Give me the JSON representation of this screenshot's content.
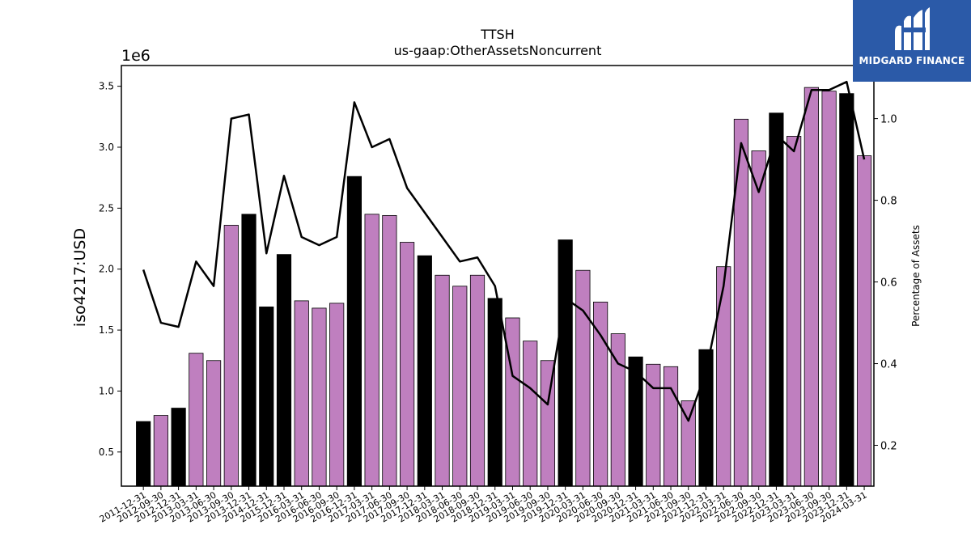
{
  "chart_data": {
    "type": "bar",
    "title": "TTSH",
    "subtitle": "us-gaap:OtherAssetsNoncurrent",
    "ylabel": "iso4217:USD",
    "y2label": "Percentage of Assets",
    "y_offset_label": "1e6",
    "y_scale": 1000000,
    "ylim": [
      220000,
      3670000
    ],
    "y2lim": [
      0.1,
      1.13
    ],
    "yticks": [
      "0.5",
      "1.0",
      "1.5",
      "2.0",
      "2.5",
      "3.0",
      "3.5"
    ],
    "y2ticks": [
      "0.2",
      "0.4",
      "0.6",
      "0.8",
      "1.0"
    ],
    "colors": {
      "annual": "#000000",
      "quarterly": "#bf7fbf",
      "line": "#000000"
    },
    "categories": [
      "2011-12-31",
      "2012-09-30",
      "2012-12-31",
      "2013-03-31",
      "2013-06-30",
      "2013-09-30",
      "2013-12-31",
      "2014-12-31",
      "2015-12-31",
      "2016-03-31",
      "2016-06-30",
      "2016-09-30",
      "2016-12-31",
      "2017-03-31",
      "2017-06-30",
      "2017-09-30",
      "2017-12-31",
      "2018-03-31",
      "2018-06-30",
      "2018-09-30",
      "2018-12-31",
      "2019-03-31",
      "2019-06-30",
      "2019-09-30",
      "2019-12-31",
      "2020-03-31",
      "2020-06-30",
      "2020-09-30",
      "2020-12-31",
      "2021-03-31",
      "2021-06-30",
      "2021-09-30",
      "2021-12-31",
      "2022-03-31",
      "2022-06-30",
      "2022-09-30",
      "2022-12-31",
      "2023-03-31",
      "2023-06-30",
      "2023-09-30",
      "2023-12-31",
      "2024-03-31"
    ],
    "series": [
      {
        "values": [
          750000,
          800000,
          860000,
          1310000,
          1250000,
          2360000,
          2450000,
          1690000,
          2120000,
          1740000,
          1680000,
          1720000,
          2760000,
          2450000,
          2440000,
          2220000,
          2110000,
          1950000,
          1860000,
          1950000,
          1760000,
          1600000,
          1410000,
          1250000,
          2240000,
          1990000,
          1730000,
          1470000,
          1280000,
          1220000,
          1200000,
          920000,
          1340000,
          2020000,
          3230000,
          2970000,
          3280000,
          3090000,
          3490000,
          3460000,
          3440000,
          2930000
        ],
        "kinds": [
          "A",
          "Q",
          "A",
          "Q",
          "Q",
          "Q",
          "A",
          "A",
          "A",
          "Q",
          "Q",
          "Q",
          "A",
          "Q",
          "Q",
          "Q",
          "A",
          "Q",
          "Q",
          "Q",
          "A",
          "Q",
          "Q",
          "Q",
          "A",
          "Q",
          "Q",
          "Q",
          "A",
          "Q",
          "Q",
          "Q",
          "A",
          "Q",
          "Q",
          "Q",
          "A",
          "Q",
          "Q",
          "Q",
          "A",
          "Q"
        ]
      },
      {
        "axis": "right",
        "values": [
          0.63,
          0.5,
          0.49,
          0.65,
          0.59,
          1.0,
          1.01,
          0.67,
          0.86,
          0.71,
          0.69,
          0.71,
          1.04,
          0.93,
          0.95,
          0.83,
          0.77,
          0.71,
          0.65,
          0.66,
          0.59,
          0.37,
          0.34,
          0.3,
          0.56,
          0.53,
          0.47,
          0.4,
          0.38,
          0.34,
          0.34,
          0.26,
          0.38,
          0.59,
          0.94,
          0.82,
          0.96,
          0.92,
          1.07,
          1.07,
          1.09,
          0.9
        ]
      }
    ]
  },
  "brand": {
    "name": "MIDGARD FINANCE"
  }
}
